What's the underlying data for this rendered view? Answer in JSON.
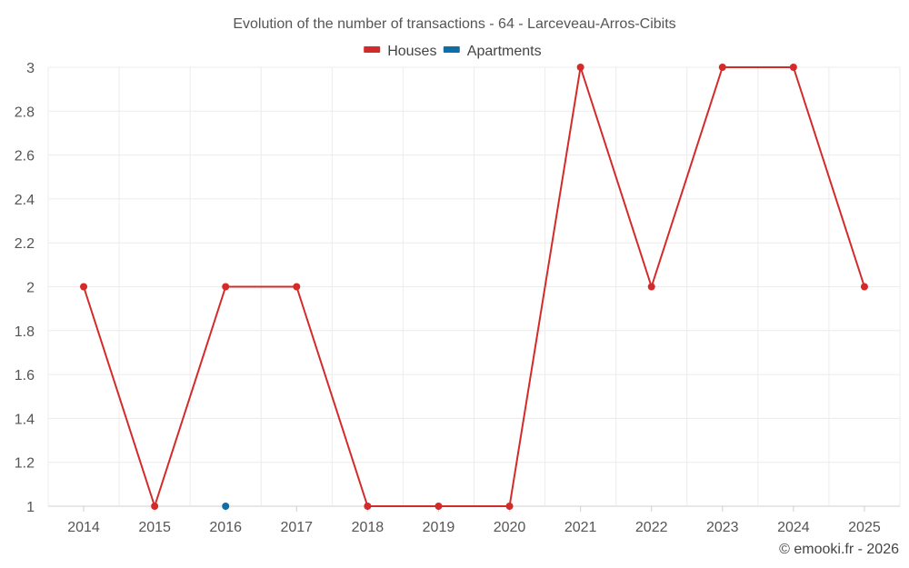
{
  "chart_data": {
    "type": "line",
    "title": "Evolution of the number of transactions - 64 - Larceveau-Arros-Cibits",
    "categories": [
      "2014",
      "2015",
      "2016",
      "2017",
      "2018",
      "2019",
      "2020",
      "2021",
      "2022",
      "2023",
      "2024",
      "2025"
    ],
    "series": [
      {
        "name": "Houses",
        "color": "#d42a2a",
        "values": [
          2,
          1,
          2,
          2,
          1,
          1,
          1,
          3,
          2,
          3,
          3,
          2
        ]
      },
      {
        "name": "Apartments",
        "color": "#0e6fa6",
        "values": [
          null,
          null,
          1,
          null,
          null,
          null,
          null,
          null,
          null,
          null,
          null,
          null
        ]
      }
    ],
    "ylim": [
      1,
      3
    ],
    "yticks": [
      "1",
      "1.2",
      "1.4",
      "1.6",
      "1.8",
      "2",
      "2.2",
      "2.4",
      "2.6",
      "2.8",
      "3"
    ],
    "grid": true,
    "legend_position": "top-center"
  },
  "credit": "© emooki.fr - 2026"
}
